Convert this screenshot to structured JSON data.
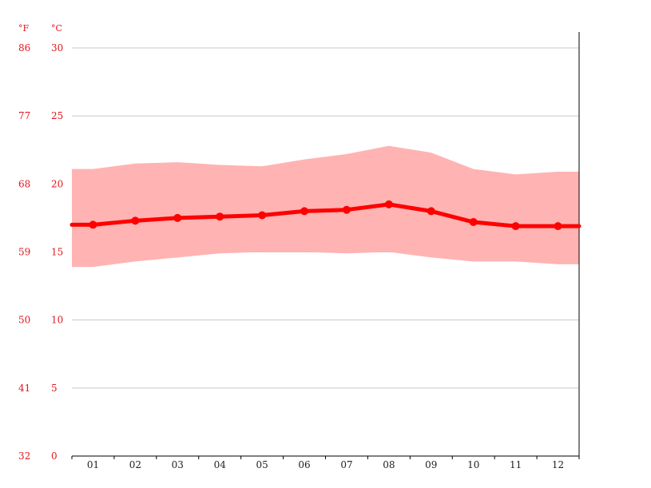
{
  "chart_data": {
    "type": "line",
    "units": {
      "fahrenheit": "°F",
      "celsius": "°C"
    },
    "categories": [
      "01",
      "02",
      "03",
      "04",
      "05",
      "06",
      "07",
      "08",
      "09",
      "10",
      "11",
      "12"
    ],
    "y_celsius_ticks": [
      "0",
      "5",
      "10",
      "15",
      "20",
      "25",
      "30"
    ],
    "y_fahrenheit_ticks": [
      "32",
      "41",
      "50",
      "59",
      "68",
      "77",
      "86"
    ],
    "ylim": [
      0,
      30
    ],
    "grid": true,
    "series": [
      {
        "values": [
          17.0,
          17.3,
          17.5,
          17.6,
          17.7,
          18.0,
          18.1,
          18.5,
          18.0,
          17.2,
          16.9,
          16.9
        ]
      }
    ],
    "range": {
      "max": [
        21.1,
        21.5,
        21.6,
        21.4,
        21.3,
        21.8,
        22.2,
        22.8,
        22.3,
        21.1,
        20.7,
        20.9
      ],
      "min": [
        13.9,
        14.3,
        14.6,
        14.9,
        15.0,
        15.0,
        14.9,
        15.0,
        14.6,
        14.3,
        14.3,
        14.1
      ]
    },
    "colors": {
      "line": "#ff0000",
      "band": "#ffb3b3",
      "axis_text": "#e0161b",
      "grid": "#c8c8c8"
    }
  }
}
